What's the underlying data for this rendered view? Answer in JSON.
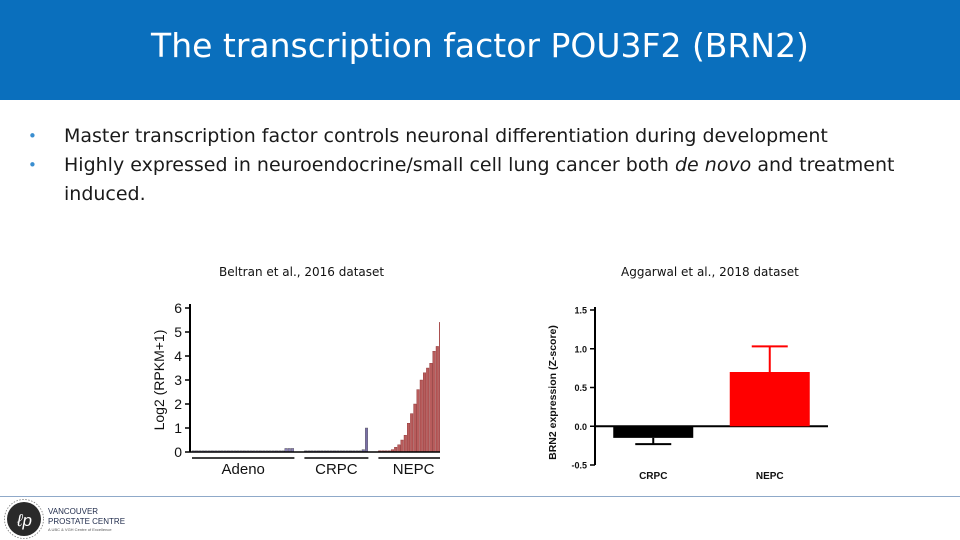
{
  "slide": {
    "title": "The transcription factor POU3F2 (BRN2)",
    "bullets": [
      {
        "before": "Master transcription factor controls neuronal differentiation during development",
        "italic": "",
        "after": ""
      },
      {
        "before": "Highly expressed in neuroendocrine/small cell lung cancer both ",
        "italic": "de novo",
        "after": " and treatment induced."
      }
    ]
  },
  "colors": {
    "header": "#0a6fbd",
    "bar_red": "#b85c5c",
    "bar_purple": "#7a6fa8",
    "nepc_red": "#ff0000",
    "crpc_black": "#000000"
  },
  "chart_data": [
    {
      "type": "bar",
      "caption": "Beltran et al., 2016 dataset",
      "ylabel": "Log2 (RPKM+1)",
      "xlabel": "",
      "ylim": [
        0,
        6
      ],
      "yticks": [
        "0",
        "1",
        "2",
        "3",
        "4",
        "5",
        "6"
      ],
      "groups": [
        {
          "name": "Adeno",
          "color": "#8a7fb8",
          "values": [
            0.05,
            0.05,
            0.05,
            0.05,
            0.05,
            0.05,
            0.05,
            0.05,
            0.05,
            0.05,
            0.05,
            0.05,
            0.05,
            0.05,
            0.05,
            0.05,
            0.05,
            0.05,
            0.05,
            0.05,
            0.05,
            0.05,
            0.05,
            0.05,
            0.05,
            0.05,
            0.05,
            0.05,
            0.05,
            0.15,
            0.15,
            0.15
          ]
        },
        {
          "name": "CRPC",
          "color": "#7a6fa8",
          "values": [
            0.05,
            0.05,
            0.05,
            0.05,
            0.05,
            0.05,
            0.05,
            0.05,
            0.05,
            0.05,
            0.05,
            0.05,
            0.05,
            0.05,
            0.05,
            0.05,
            0.05,
            0.05,
            0.1,
            1.0
          ]
        },
        {
          "name": "NEPC",
          "color": "#b85c5c",
          "values": [
            0.05,
            0.05,
            0.05,
            0.05,
            0.1,
            0.2,
            0.3,
            0.5,
            0.7,
            1.2,
            1.6,
            2.0,
            2.6,
            3.0,
            3.3,
            3.5,
            3.7,
            4.2,
            4.4,
            5.4,
            5.7,
            6.1
          ]
        }
      ]
    },
    {
      "type": "bar",
      "caption": "Aggarwal et al., 2018 dataset",
      "ylabel": "BRN2 expression (Z-score)",
      "xlabel": "",
      "ylim": [
        -0.5,
        1.5
      ],
      "yticks": [
        "-0.5",
        "0.0",
        "0.5",
        "1.0",
        "1.5"
      ],
      "categories": [
        "CRPC",
        "NEPC"
      ],
      "values": [
        -0.15,
        0.7
      ],
      "errors": [
        0.08,
        0.33
      ],
      "colors": [
        "#000000",
        "#ff0000"
      ]
    }
  ],
  "logo": {
    "line1": "VANCOUVER",
    "line2": "PROSTATE CENTRE",
    "tagline": "A UBC & VGH Centre of Excellence"
  }
}
